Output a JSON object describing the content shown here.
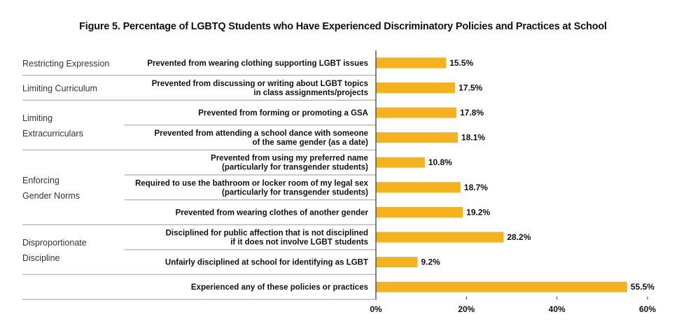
{
  "chart_data": {
    "type": "bar",
    "orientation": "horizontal",
    "title": "Figure 5. Percentage of LGBTQ Students who Have Experienced Discriminatory Policies and Practices at School",
    "groups": [
      {
        "name": [
          "Restricting Expression"
        ],
        "items": [
          0
        ]
      },
      {
        "name": [
          "Limiting Curriculum"
        ],
        "items": [
          1
        ]
      },
      {
        "name": [
          "Limiting",
          "Extracurriculars"
        ],
        "items": [
          2,
          3
        ]
      },
      {
        "name": [
          "Enforcing",
          "Gender Norms"
        ],
        "items": [
          4,
          5,
          6
        ]
      },
      {
        "name": [
          "Disproportionate",
          "Discipline"
        ],
        "items": [
          7,
          8
        ]
      },
      {
        "name": [
          ""
        ],
        "items": [
          9
        ]
      }
    ],
    "categories": [
      [
        "Prevented from wearing clothing supporting LGBT issues"
      ],
      [
        "Prevented from discussing or writing about LGBT topics",
        "in class assignments/projects"
      ],
      [
        "Prevented from forming or promoting a GSA"
      ],
      [
        "Prevented from attending a school dance with someone",
        "of the same gender (as a date)"
      ],
      [
        "Prevented from using my preferred name",
        "(particularly for transgender students)"
      ],
      [
        "Required to use the bathroom or locker room of my legal sex",
        "(particularly for transgender students)"
      ],
      [
        "Prevented from wearing clothes of another gender"
      ],
      [
        "Disciplined for public affection that is not disciplined",
        "if it does not involve LGBT students"
      ],
      [
        "Unfairly disciplined at school for identifying as LGBT"
      ],
      [
        "Experienced any of these policies or practices"
      ]
    ],
    "values": [
      15.5,
      17.5,
      17.8,
      18.1,
      10.8,
      18.7,
      19.2,
      28.2,
      9.2,
      55.5
    ],
    "value_labels": [
      "15.5%",
      "17.5%",
      "17.8%",
      "18.1%",
      "10.8%",
      "18.7%",
      "19.2%",
      "28.2%",
      "9.2%",
      "55.5%"
    ],
    "xlim": [
      0,
      60
    ],
    "xticks": [
      0,
      20,
      40,
      60
    ],
    "xtick_labels": [
      "0%",
      "20%",
      "40%",
      "60%"
    ],
    "grid": false,
    "bar_color": "#F5B21F"
  }
}
